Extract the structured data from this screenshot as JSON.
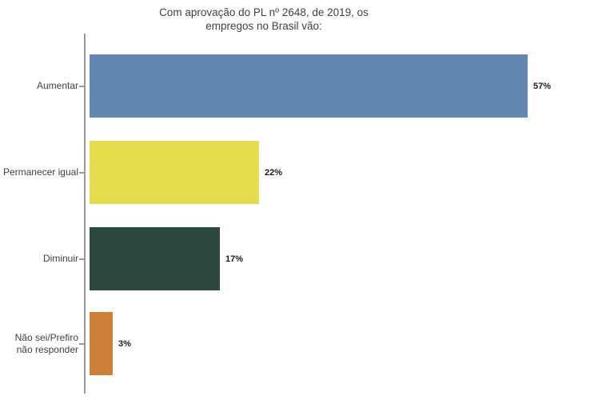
{
  "chart_data": {
    "type": "bar",
    "orientation": "horizontal",
    "title": "Com aprovação do PL nº 2648, de 2019, os empregos no Brasil vão:",
    "title_lines": [
      "Com aprovação do PL nº 2648, de 2019, os",
      "empregos no Brasil vão:"
    ],
    "categories": [
      "Aumentar",
      "Permanecer igual",
      "Diminuir",
      "Não sei/Prefiro\nnão responder"
    ],
    "values": [
      57,
      22,
      17,
      3
    ],
    "value_labels": [
      "57%",
      "22%",
      "17%",
      "3%"
    ],
    "bar_colors": [
      "#6288b2",
      "#e5dc4d",
      "#2d483c",
      "#cb8033"
    ],
    "xlabel": "",
    "ylabel": "",
    "xlim": [
      0,
      60
    ],
    "grid": false,
    "legend": "none",
    "axis_color": "#9b9b9b",
    "title_color": "#404040",
    "label_color": "#404040",
    "value_label_color": "#1a1a1a",
    "background": "#ffffff"
  }
}
